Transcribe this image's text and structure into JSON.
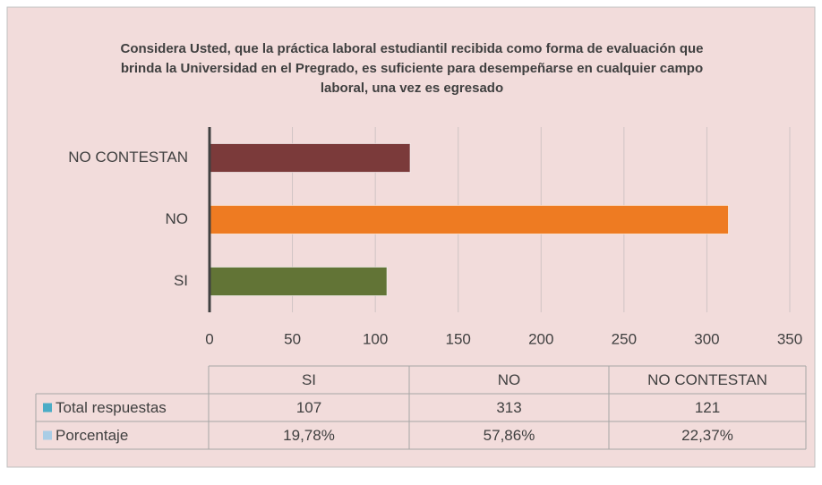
{
  "chart_data": {
    "type": "bar",
    "orientation": "horizontal",
    "title": "Considera Usted, que la práctica laboral estudiantil recibida como forma de evaluación que brinda la Universidad en el Pregrado, es suficiente para desempeñarse en cualquier campo laboral, una vez es egresado",
    "categories": [
      "SI",
      "NO",
      "NO CONTESTAN"
    ],
    "series": [
      {
        "name": "Total respuestas",
        "color": "#4bacc6",
        "point_colors": [
          "#627436",
          "#ee7b22",
          "#7b3a3a"
        ],
        "values": [
          107,
          313,
          121
        ]
      },
      {
        "name": "Porcentaje",
        "color": "#a9cde6",
        "values": [
          0.1978,
          0.5786,
          0.2237
        ],
        "value_labels": [
          "19,78%",
          "57,86%",
          "22,37%"
        ]
      }
    ],
    "xlim": [
      0,
      350
    ],
    "xticks": [
      0,
      50,
      100,
      150,
      200,
      250,
      300,
      350
    ],
    "grid": true,
    "data_table": true
  }
}
